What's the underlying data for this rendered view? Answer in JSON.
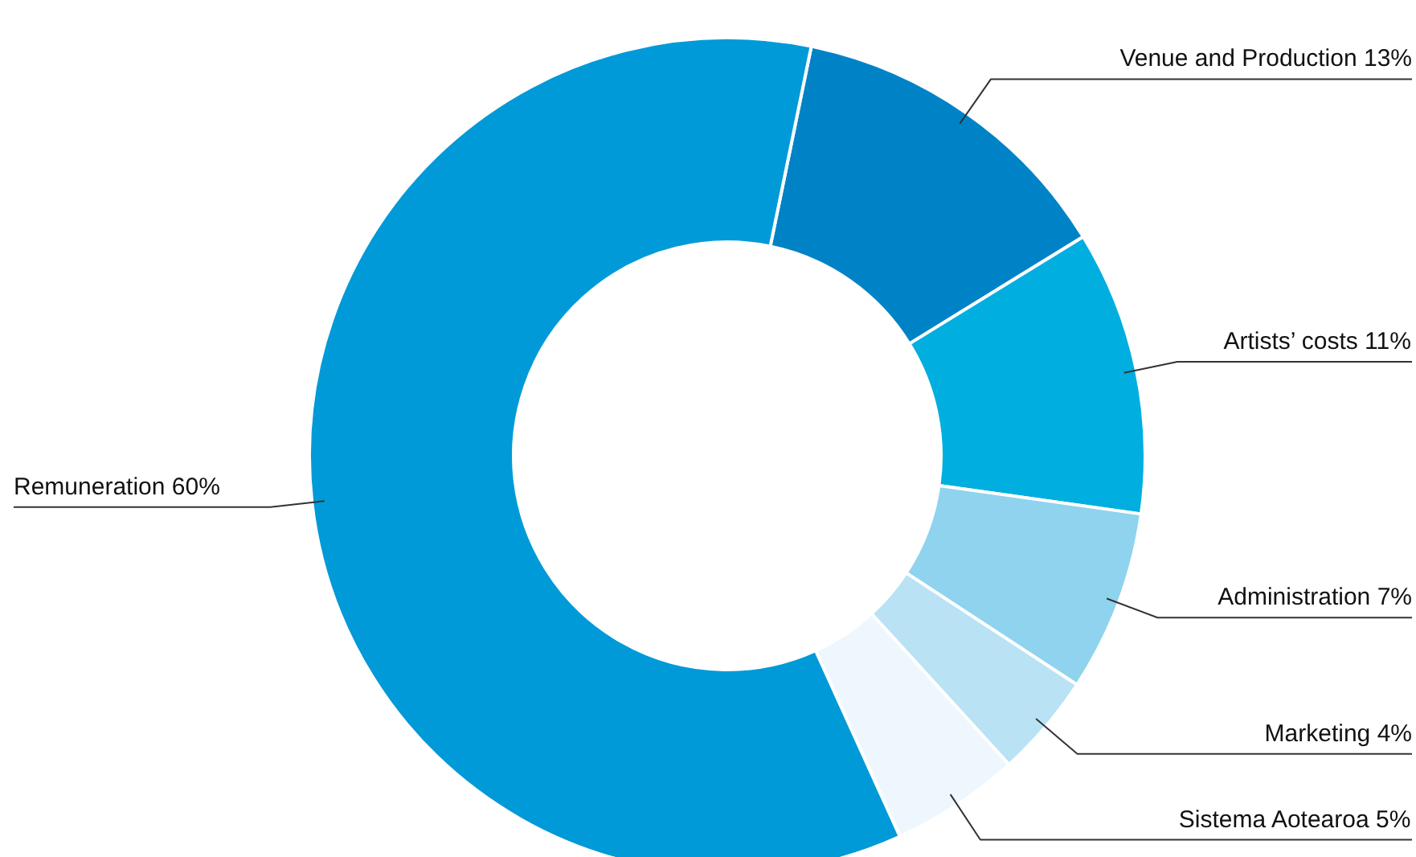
{
  "chart_data": {
    "type": "donut",
    "categories": [
      "Venue and Production",
      "Artists’ costs",
      "Administration",
      "Marketing",
      "Sistema Aotearoa",
      "Remuneration"
    ],
    "values": [
      13,
      11,
      7,
      4,
      5,
      60
    ],
    "value_labels": [
      "13%",
      "11%",
      "7%",
      "4%",
      "5%",
      "60%"
    ],
    "colors": [
      "#0083c6",
      "#00aee0",
      "#8fd3ee",
      "#b9e2f4",
      "#eef7fd",
      "#009ad8"
    ]
  }
}
